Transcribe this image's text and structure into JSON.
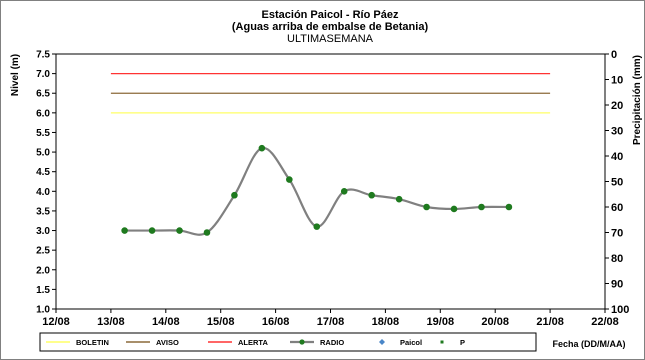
{
  "chart_data": {
    "type": "line",
    "title": "Estación Paicol  - Río Páez",
    "subtitle": "(Aguas arriba de embalse de Betania)",
    "subtitle2": "ULTIMASEMANA",
    "ylabel": "Nivel (m)",
    "y2label": "Precipitación (mm)",
    "xlabel": "Fecha  (DD/M/AA)",
    "ylim": [
      1.0,
      7.5
    ],
    "y2lim": [
      0,
      100
    ],
    "y2_inverted": true,
    "yticks": [
      "1.0",
      "1.5",
      "2.0",
      "2.5",
      "3.0",
      "3.5",
      "4.0",
      "4.5",
      "5.0",
      "5.5",
      "6.0",
      "6.5",
      "7.0",
      "7.5"
    ],
    "y2ticks": [
      "0",
      "10",
      "20",
      "30",
      "40",
      "50",
      "60",
      "70",
      "80",
      "90",
      "100"
    ],
    "xlim": [
      0,
      10
    ],
    "xticks": [
      "12/08",
      "13/08",
      "14/08",
      "15/08",
      "16/08",
      "17/08",
      "18/08",
      "19/08",
      "20/08",
      "21/08",
      "22/08"
    ],
    "thresholds": [
      {
        "name": "BOLETIN",
        "value": 6.0,
        "x_from": 1.0,
        "x_to": 9.0,
        "color": "#ffff66"
      },
      {
        "name": "AVISO",
        "value": 6.5,
        "x_from": 1.0,
        "x_to": 9.0,
        "color": "#8b6a3a"
      },
      {
        "name": "ALERTA",
        "value": 7.0,
        "x_from": 1.0,
        "x_to": 9.0,
        "color": "#ff3333"
      }
    ],
    "series": [
      {
        "name": "RADIO",
        "color": "#808080",
        "marker_color": "#1f7a1f",
        "x": [
          1.25,
          1.75,
          2.25,
          2.75,
          3.25,
          3.75,
          4.25,
          4.75,
          5.25,
          5.75,
          6.25,
          6.75,
          7.25,
          7.75,
          8.25
        ],
        "values": [
          3.0,
          3.0,
          3.0,
          2.95,
          3.9,
          5.1,
          4.3,
          3.1,
          4.0,
          3.9,
          3.8,
          3.6,
          3.55,
          3.6,
          3.6
        ]
      }
    ],
    "legend": [
      {
        "name": "BOLETIN",
        "kind": "line",
        "color": "#ffff66"
      },
      {
        "name": "AVISO",
        "kind": "line",
        "color": "#8b6a3a"
      },
      {
        "name": "ALERTA",
        "kind": "line",
        "color": "#ff3333"
      },
      {
        "name": "RADIO",
        "kind": "line-marker",
        "color": "#808080",
        "marker": "#1f7a1f"
      },
      {
        "name": "Paicol",
        "kind": "diamond",
        "color": "#4a86c8"
      },
      {
        "name": "P",
        "kind": "square",
        "color": "#1f7a1f"
      }
    ],
    "grid": false,
    "legend_position": "bottom"
  }
}
